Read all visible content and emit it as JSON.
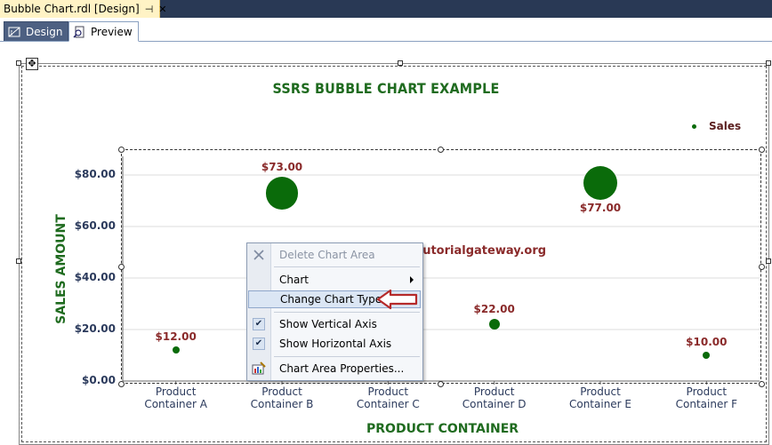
{
  "document_tab": {
    "title": "Bubble Chart.rdl [Design]",
    "pin_glyph": "⊣",
    "close_glyph": "✕"
  },
  "view_tabs": {
    "design": "Design",
    "preview": "Preview"
  },
  "colors": {
    "bubble": "#0a6b0a",
    "title": "#1f6b1f",
    "label": "#8a2a2a",
    "axis_text": "#2b3a5c"
  },
  "chart_data": {
    "type": "scatter",
    "subtype": "bubble",
    "title": "SSRS BUBBLE CHART EXAMPLE",
    "xlabel": "PRODUCT CONTAINER",
    "ylabel": "SALES AMOUNT",
    "ylim": [
      0,
      90
    ],
    "yticks": [
      "$0.00",
      "$20.00",
      "$40.00",
      "$60.00",
      "$80.00"
    ],
    "legend": {
      "entries": [
        "Sales"
      ],
      "position": "top-right"
    },
    "categories": [
      {
        "line1": "Product",
        "line2": "Container A"
      },
      {
        "line1": "Product",
        "line2": "Container B"
      },
      {
        "line1": "Product",
        "line2": "Container C"
      },
      {
        "line1": "Product",
        "line2": "Container D"
      },
      {
        "line1": "Product",
        "line2": "Container E"
      },
      {
        "line1": "Product",
        "line2": "Container F"
      }
    ],
    "series": [
      {
        "name": "Sales",
        "points": [
          {
            "category_index": 0,
            "value": 12,
            "label": "$12.00"
          },
          {
            "category_index": 1,
            "value": 73,
            "label": "$73.00"
          },
          {
            "category_index": 3,
            "value": 22,
            "label": "$22.00"
          },
          {
            "category_index": 4,
            "value": 77,
            "label": "$77.00"
          },
          {
            "category_index": 5,
            "value": 10,
            "label": "$10.00"
          }
        ]
      }
    ]
  },
  "watermark": "©tutorialgateway.org",
  "context_menu": {
    "delete_chart_area": "Delete Chart Area",
    "chart": "Chart",
    "change_chart_type": "Change Chart Type...",
    "show_vertical_axis": "Show Vertical Axis",
    "show_horizontal_axis": "Show Horizontal Axis",
    "chart_area_properties": "Chart Area Properties..."
  }
}
